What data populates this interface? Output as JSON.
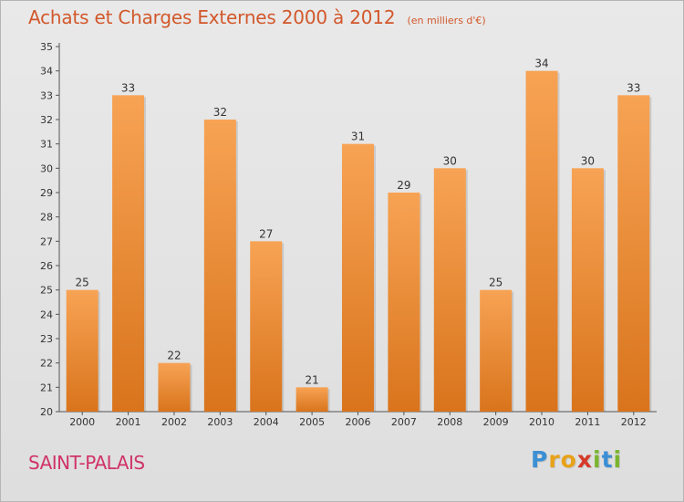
{
  "colors": {
    "bar_light": "#f7a354",
    "bar_dark": "#d9741c",
    "title": "#d2582b",
    "commune": "#d03367"
  },
  "chart_data": {
    "type": "bar",
    "title": "Achats et Charges Externes 2000 à 2012",
    "unit_label": "(en milliers d'€)",
    "categories": [
      "2000",
      "2001",
      "2002",
      "2003",
      "2004",
      "2005",
      "2006",
      "2007",
      "2008",
      "2009",
      "2010",
      "2011",
      "2012"
    ],
    "values": [
      25,
      33,
      22,
      32,
      27,
      21,
      31,
      29,
      30,
      25,
      34,
      30,
      33
    ],
    "ylim": [
      20,
      35
    ],
    "yticks": [
      20,
      21,
      22,
      23,
      24,
      25,
      26,
      27,
      28,
      29,
      30,
      31,
      32,
      33,
      34,
      35
    ],
    "grid": false,
    "data_labels": true
  },
  "footer": {
    "commune": "SAINT-PALAIS",
    "brand_letters": [
      {
        "ch": "P",
        "color": "#3b8fd4"
      },
      {
        "ch": "r",
        "color": "#e8a21a"
      },
      {
        "ch": "o",
        "color": "#e8a21a"
      },
      {
        "ch": "x",
        "color": "#d63a2a"
      },
      {
        "ch": "i",
        "color": "#7ab530"
      },
      {
        "ch": "t",
        "color": "#3b8fd4"
      },
      {
        "ch": "i",
        "color": "#7ab530"
      }
    ]
  }
}
